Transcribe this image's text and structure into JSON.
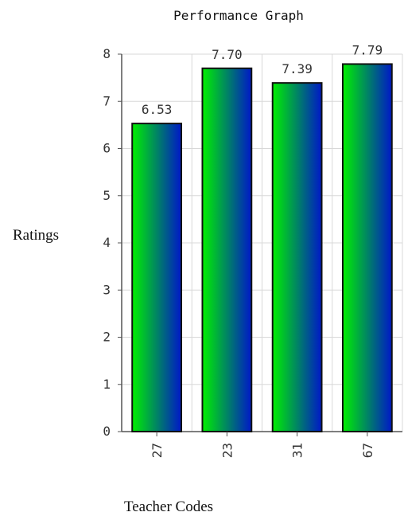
{
  "chart_data": {
    "type": "bar",
    "title": "Performance Graph",
    "xlabel": "Teacher Codes",
    "ylabel": "Ratings",
    "categories": [
      "27",
      "23",
      "31",
      "67"
    ],
    "values": [
      6.53,
      7.7,
      7.39,
      7.79
    ],
    "value_labels": [
      "6.53",
      "7.70",
      "7.39",
      "7.79"
    ],
    "yticks": [
      "0",
      "1",
      "2",
      "3",
      "4",
      "5",
      "6",
      "7",
      "8"
    ],
    "ylim": [
      0,
      8
    ],
    "grid": true,
    "legend": "none",
    "colors": {
      "bar_gradient_start": "#00f000",
      "bar_gradient_end": "#0018c8",
      "bar_outline": "#111111",
      "grid": "#d8d8d8",
      "axis": "#555555",
      "text": "#333333"
    }
  }
}
